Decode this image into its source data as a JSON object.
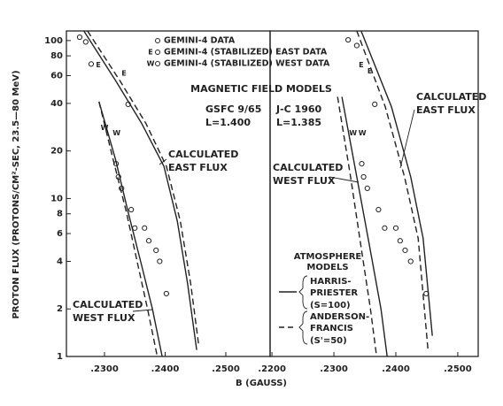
{
  "chart_data": [
    {
      "type": "line",
      "log_y": true,
      "ylabel": "PROTON FLUX (PROTONS/CM²-SEC, 23.5—80 MeV)",
      "xlabel": "B (GAUSS)",
      "xlim": [
        0.22372,
        0.2573
      ],
      "ylim": [
        1,
        115
      ],
      "xticks": [
        {
          "value": 0.23,
          "label": ".2300"
        },
        {
          "value": 0.24,
          "label": ".2400"
        },
        {
          "value": 0.25,
          "label": ".2500"
        }
      ],
      "yticks": [
        1,
        2,
        4,
        6,
        8,
        10,
        20,
        40,
        60,
        80,
        100
      ],
      "series": [
        {
          "name": "GEMINI-4 DATA",
          "type": "scatter",
          "marker": "o",
          "x": [
            0.2259,
            0.2269,
            0.2278,
            0.2339,
            0.2319,
            0.2323,
            0.2328,
            0.2344,
            0.235,
            0.2366,
            0.2373,
            0.2385,
            0.2391,
            0.2402
          ],
          "values": [
            105,
            98,
            71,
            39.5,
            16.6,
            13.7,
            11.6,
            8.5,
            6.5,
            6.5,
            5.4,
            4.7,
            4.0,
            2.5
          ]
        },
        {
          "name": "GEMINI-4 (STABILIZED) EAST DATA",
          "type": "scatter",
          "marker": "E",
          "x": [
            0.229,
            0.2332
          ],
          "values": [
            70,
            62
          ]
        },
        {
          "name": "GEMINI-4 (STABILIZED) WEST DATA",
          "type": "scatter",
          "marker": "W",
          "x": [
            0.23,
            0.232
          ],
          "values": [
            28,
            26
          ]
        },
        {
          "type": "line",
          "style": "solid",
          "x": [
            0.2266,
            0.2318,
            0.2361,
            0.2398,
            0.242,
            0.2437,
            0.2452
          ],
          "values": [
            115,
            56,
            30,
            16,
            7.2,
            2.9,
            1.1
          ]
        },
        {
          "type": "line",
          "style": "dashed",
          "x": [
            0.2272,
            0.2325,
            0.2368,
            0.2402,
            0.2425,
            0.2442,
            0.2455
          ],
          "values": [
            115,
            56,
            30,
            16,
            7.2,
            2.9,
            1.2
          ]
        },
        {
          "type": "line",
          "style": "solid",
          "x": [
            0.2291,
            0.2318,
            0.2339,
            0.2361,
            0.2379,
            0.2395
          ],
          "values": [
            41,
            17.8,
            8.2,
            3.8,
            2.0,
            1
          ]
        },
        {
          "type": "line",
          "style": "dashed",
          "x": [
            0.2291,
            0.2314,
            0.2336,
            0.2355,
            0.2371,
            0.2387
          ],
          "values": [
            41,
            17.8,
            8.2,
            3.8,
            2.0,
            1
          ]
        }
      ],
      "annotations": [
        {
          "text": [
            "CALCULATED",
            "EAST FLUX"
          ]
        },
        {
          "text": [
            "CALCULATED",
            "WEST FLUX"
          ]
        },
        {
          "text": [
            "MAGNETIC FIELD MODELS"
          ]
        },
        {
          "text": [
            "GSFC 9/65",
            "L=1.400"
          ]
        }
      ]
    },
    {
      "type": "line",
      "log_y": true,
      "xlim": [
        0.2197,
        0.2533
      ],
      "ylim": [
        1,
        115
      ],
      "xticks": [
        {
          "value": 0.22,
          "label": ".2200"
        },
        {
          "value": 0.23,
          "label": ".2300"
        },
        {
          "value": 0.24,
          "label": ".2400"
        },
        {
          "value": 0.25,
          "label": ".2500"
        }
      ],
      "series": [
        {
          "type": "scatter",
          "marker": "o",
          "x": [
            0.2323,
            0.2337,
            0.2366,
            0.2345,
            0.2348,
            0.2354,
            0.2372,
            0.2382,
            0.24,
            0.2407,
            0.2415,
            0.2424,
            0.2449
          ],
          "values": [
            101,
            93,
            39.5,
            16.6,
            13.7,
            11.6,
            8.5,
            6.5,
            6.5,
            5.4,
            4.7,
            4.0,
            2.5
          ]
        },
        {
          "type": "scatter",
          "marker": "E",
          "x": [
            0.2344,
            0.2358
          ],
          "values": [
            70,
            64
          ]
        },
        {
          "type": "scatter",
          "marker": "W",
          "x": [
            0.2331,
            0.2346
          ],
          "values": [
            26,
            26
          ]
        },
        {
          "type": "line",
          "style": "solid",
          "x": [
            0.2344,
            0.2393,
            0.2424,
            0.2444,
            0.2459
          ],
          "values": [
            115,
            38,
            13.7,
            5.6,
            1.35
          ]
        },
        {
          "type": "line",
          "style": "dashed",
          "x": [
            0.2337,
            0.2383,
            0.2414,
            0.2436,
            0.2452
          ],
          "values": [
            115,
            38,
            13.7,
            5.6,
            1.1
          ]
        },
        {
          "type": "line",
          "style": "solid",
          "x": [
            0.2313,
            0.2337,
            0.2358,
            0.2376,
            0.2386
          ],
          "values": [
            44,
            13.7,
            4.9,
            2.0,
            1
          ]
        },
        {
          "type": "line",
          "style": "dashed",
          "x": [
            0.2306,
            0.2327,
            0.2344,
            0.2359,
            0.2369
          ],
          "values": [
            44,
            13.7,
            4.9,
            2.0,
            1
          ]
        }
      ],
      "annotations": [
        {
          "text": [
            "CALCULATED",
            "EAST FLUX"
          ]
        },
        {
          "text": [
            "CALCULATED",
            "WEST FLUX"
          ]
        },
        {
          "text": [
            "J-C 1960",
            "L=1.385"
          ]
        }
      ],
      "atmosphere_models": {
        "title": [
          "ATMOSPHERE",
          "MODELS"
        ],
        "items": [
          {
            "name": [
              "HARRIS-",
              "PRIESTER"
            ],
            "param": "(S=100)",
            "style": "solid"
          },
          {
            "name": [
              "ANDERSON-",
              "FRANCIS"
            ],
            "param": "(S'=50)",
            "style": "dashed"
          }
        ]
      }
    }
  ]
}
